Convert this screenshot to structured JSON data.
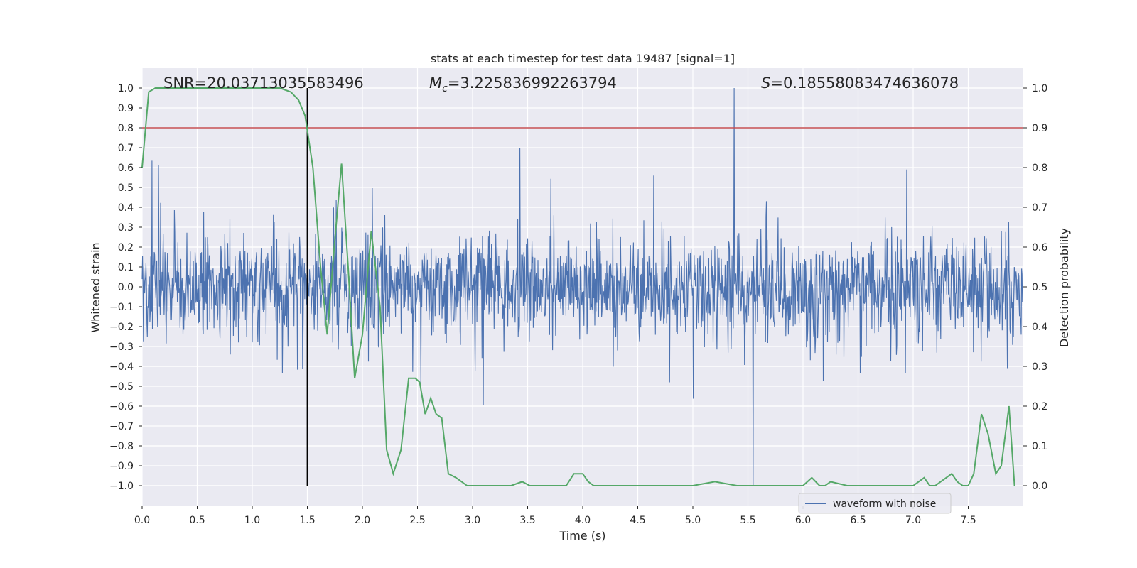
{
  "chart_data": {
    "type": "line",
    "title": "stats at each timestep for test data 19487 [signal=1]",
    "xlabel": "Time (s)",
    "ylabel_left": "Whitened strain",
    "ylabel_right": "Detection probability",
    "xlim": [
      0.0,
      8.0
    ],
    "ylim_left": [
      -1.1,
      1.1
    ],
    "ylim_right": [
      -0.05,
      1.05
    ],
    "x_ticks": [
      "0.0",
      "0.5",
      "1.0",
      "1.5",
      "2.0",
      "2.5",
      "3.0",
      "3.5",
      "4.0",
      "4.5",
      "5.0",
      "5.5",
      "6.0",
      "6.5",
      "7.0",
      "7.5"
    ],
    "y_ticks_left": [
      "1.0",
      "0.9",
      "0.8",
      "0.7",
      "0.6",
      "0.5",
      "0.4",
      "0.3",
      "0.2",
      "0.1",
      "0.0",
      "−0.1",
      "−0.2",
      "−0.3",
      "−0.4",
      "−0.5",
      "−0.6",
      "−0.7",
      "−0.8",
      "−0.9",
      "−1.0"
    ],
    "y_ticks_right": [
      "1.0",
      "0.9",
      "0.8",
      "0.7",
      "0.6",
      "0.5",
      "0.4",
      "0.3",
      "0.2",
      "0.1",
      "0.0"
    ],
    "grid": true,
    "legend": {
      "position": "lower-right",
      "entries": [
        "waveform with noise"
      ]
    },
    "annotations": {
      "snr": "SNR=20.03713035583496",
      "mc_symbol": "M",
      "mc_sub": "c",
      "mc_value": "=3.225836992263794",
      "s_symbol": "S",
      "s_value": "=0.18558083474636078"
    },
    "colors": {
      "waveform": "#4c72b0",
      "probability": "#55a868",
      "threshold": "#c44e52",
      "marker": "#000000",
      "plot_bg": "#eaeaf2",
      "grid": "#ffffff"
    },
    "threshold_probability": 0.9,
    "marker_time": 1.5,
    "marker_range_left": [
      -1.0,
      1.0
    ],
    "waveform": {
      "name": "waveform with noise",
      "seed": 19487,
      "sample_rate": 256,
      "duration": 8.0,
      "peak_max": 1.0,
      "peak_min": -1.0
    },
    "probability": {
      "x": [
        0.0,
        0.06,
        0.12,
        0.25,
        0.5,
        0.75,
        1.0,
        1.25,
        1.35,
        1.42,
        1.48,
        1.55,
        1.62,
        1.68,
        1.75,
        1.81,
        1.87,
        1.93,
        2.0,
        2.08,
        2.16,
        2.22,
        2.28,
        2.35,
        2.42,
        2.48,
        2.52,
        2.57,
        2.62,
        2.67,
        2.72,
        2.78,
        2.85,
        2.95,
        3.05,
        3.2,
        3.35,
        3.45,
        3.52,
        3.6,
        3.7,
        3.78,
        3.85,
        3.92,
        4.0,
        4.05,
        4.1,
        4.3,
        4.5,
        4.7,
        4.9,
        5.0,
        5.2,
        5.4,
        5.5,
        5.6,
        5.7,
        5.8,
        6.0,
        6.08,
        6.15,
        6.2,
        6.25,
        6.4,
        6.6,
        6.8,
        7.0,
        7.1,
        7.15,
        7.2,
        7.3,
        7.35,
        7.4,
        7.45,
        7.5,
        7.55,
        7.62,
        7.68,
        7.75,
        7.8,
        7.87,
        7.92
      ],
      "y": [
        0.8,
        0.99,
        1.0,
        1.0,
        1.0,
        1.0,
        1.0,
        1.0,
        0.99,
        0.97,
        0.93,
        0.8,
        0.55,
        0.38,
        0.62,
        0.81,
        0.55,
        0.27,
        0.38,
        0.64,
        0.45,
        0.09,
        0.03,
        0.09,
        0.27,
        0.27,
        0.26,
        0.18,
        0.22,
        0.18,
        0.17,
        0.03,
        0.02,
        0.0,
        0.0,
        0.0,
        0.0,
        0.01,
        0.0,
        0.0,
        0.0,
        0.0,
        0.0,
        0.03,
        0.03,
        0.01,
        0.0,
        0.0,
        0.0,
        0.0,
        0.0,
        0.0,
        0.01,
        0.0,
        0.0,
        0.0,
        0.0,
        0.0,
        0.0,
        0.02,
        0.0,
        0.0,
        0.01,
        0.0,
        0.0,
        0.0,
        0.0,
        0.02,
        0.0,
        0.0,
        0.02,
        0.03,
        0.01,
        0.0,
        0.0,
        0.03,
        0.18,
        0.13,
        0.03,
        0.05,
        0.2,
        0.0
      ]
    }
  }
}
